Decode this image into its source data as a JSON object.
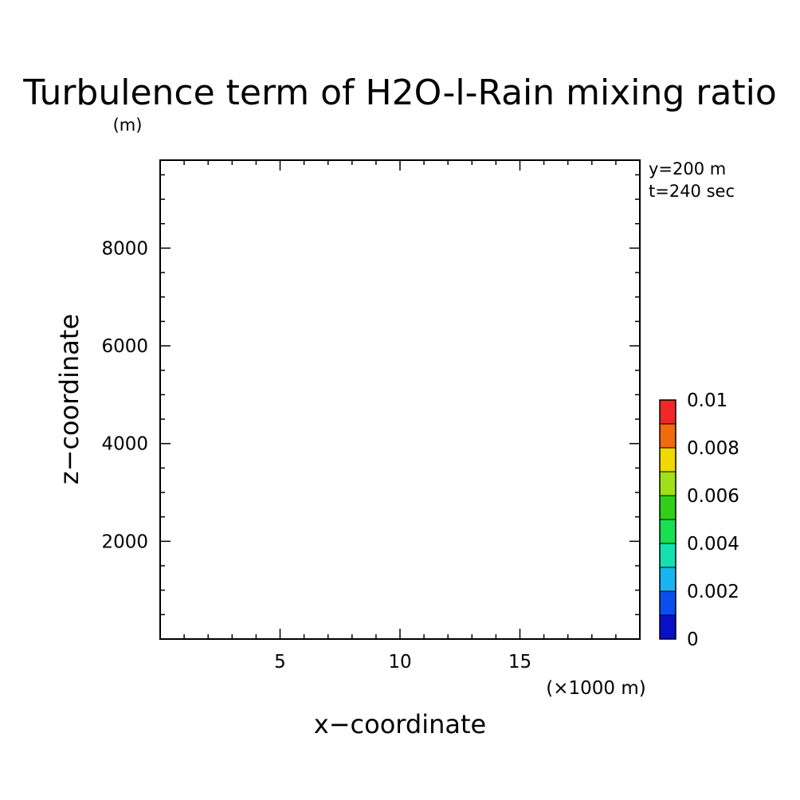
{
  "chart_data": {
    "type": "heatmap",
    "title": "Turbulence term of H2O-l-Rain mixing ratio",
    "unit_label": "(m)",
    "xlabel": "x−coordinate",
    "ylabel": "z−coordinate",
    "x_multiplier_label": "(×1000 m)",
    "annotations": [
      "y=200 m",
      "t=240 sec"
    ],
    "xlim": [
      0,
      20
    ],
    "ylim": [
      0,
      9800
    ],
    "x_ticks": [
      5,
      10,
      15
    ],
    "x_tick_labels": [
      "5",
      "10",
      "15"
    ],
    "x_minor_step": 1,
    "y_ticks": [
      2000,
      4000,
      6000,
      8000
    ],
    "y_tick_labels": [
      "2000",
      "4000",
      "6000",
      "8000"
    ],
    "y_minor_step": 500,
    "values": [],
    "colorbar": {
      "min": 0,
      "max": 0.01,
      "levels": [
        0,
        0.001,
        0.002,
        0.003,
        0.004,
        0.005,
        0.006,
        0.007,
        0.008,
        0.009,
        0.01
      ],
      "colors": [
        "#0a10c8",
        "#0a4ef0",
        "#18b4f0",
        "#14e0b0",
        "#18e050",
        "#30d018",
        "#a0e018",
        "#f0d800",
        "#f06a10",
        "#f02828"
      ],
      "tick_values": [
        0,
        0.002,
        0.004,
        0.006,
        0.008,
        0.01
      ],
      "tick_labels": [
        "0",
        "0.002",
        "0.004",
        "0.006",
        "0.008",
        "0.01"
      ]
    }
  }
}
